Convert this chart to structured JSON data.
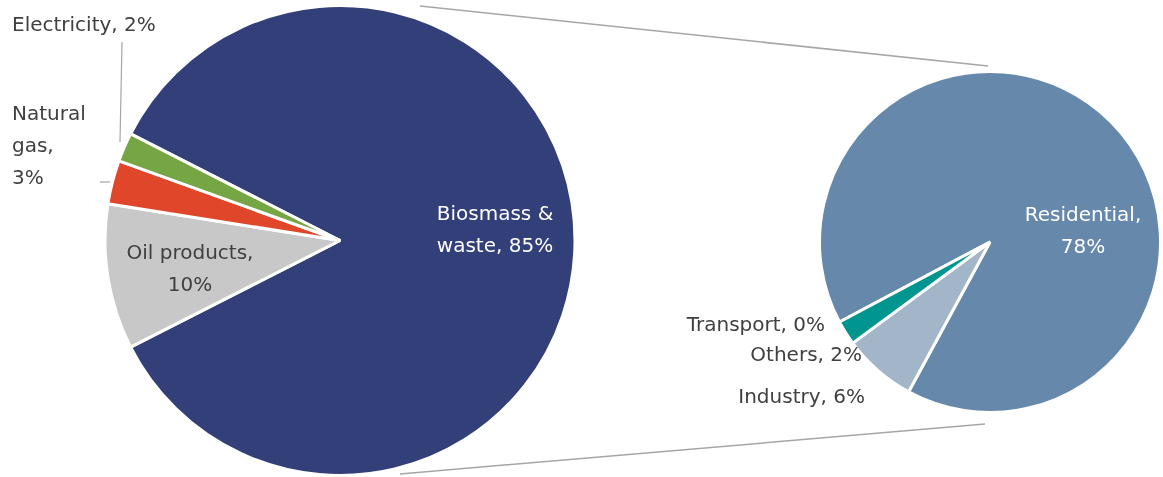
{
  "chart_data": [
    {
      "type": "pie",
      "categories": [
        "Biosmass & waste",
        "Oil products",
        "Natural gas",
        "Electricity"
      ],
      "values": [
        85,
        10,
        3,
        2
      ],
      "colors": [
        "#323f78",
        "#c8c8c8",
        "#e0472a",
        "#76a543"
      ],
      "value_labels": [
        ", 85%",
        ", 10%",
        ", 3%",
        ", 2%"
      ],
      "legend": false
    },
    {
      "type": "pie",
      "categories": [
        "Residential",
        "Industry",
        "Others",
        "Transport"
      ],
      "values": [
        78,
        6,
        2,
        0
      ],
      "colors": [
        "#6688aa",
        "#a2b5c9",
        "#00968f",
        "#2e5e8e"
      ],
      "value_labels": [
        ", 78%",
        ", 6%",
        ", 2%",
        ", 0%"
      ],
      "legend": false
    }
  ]
}
